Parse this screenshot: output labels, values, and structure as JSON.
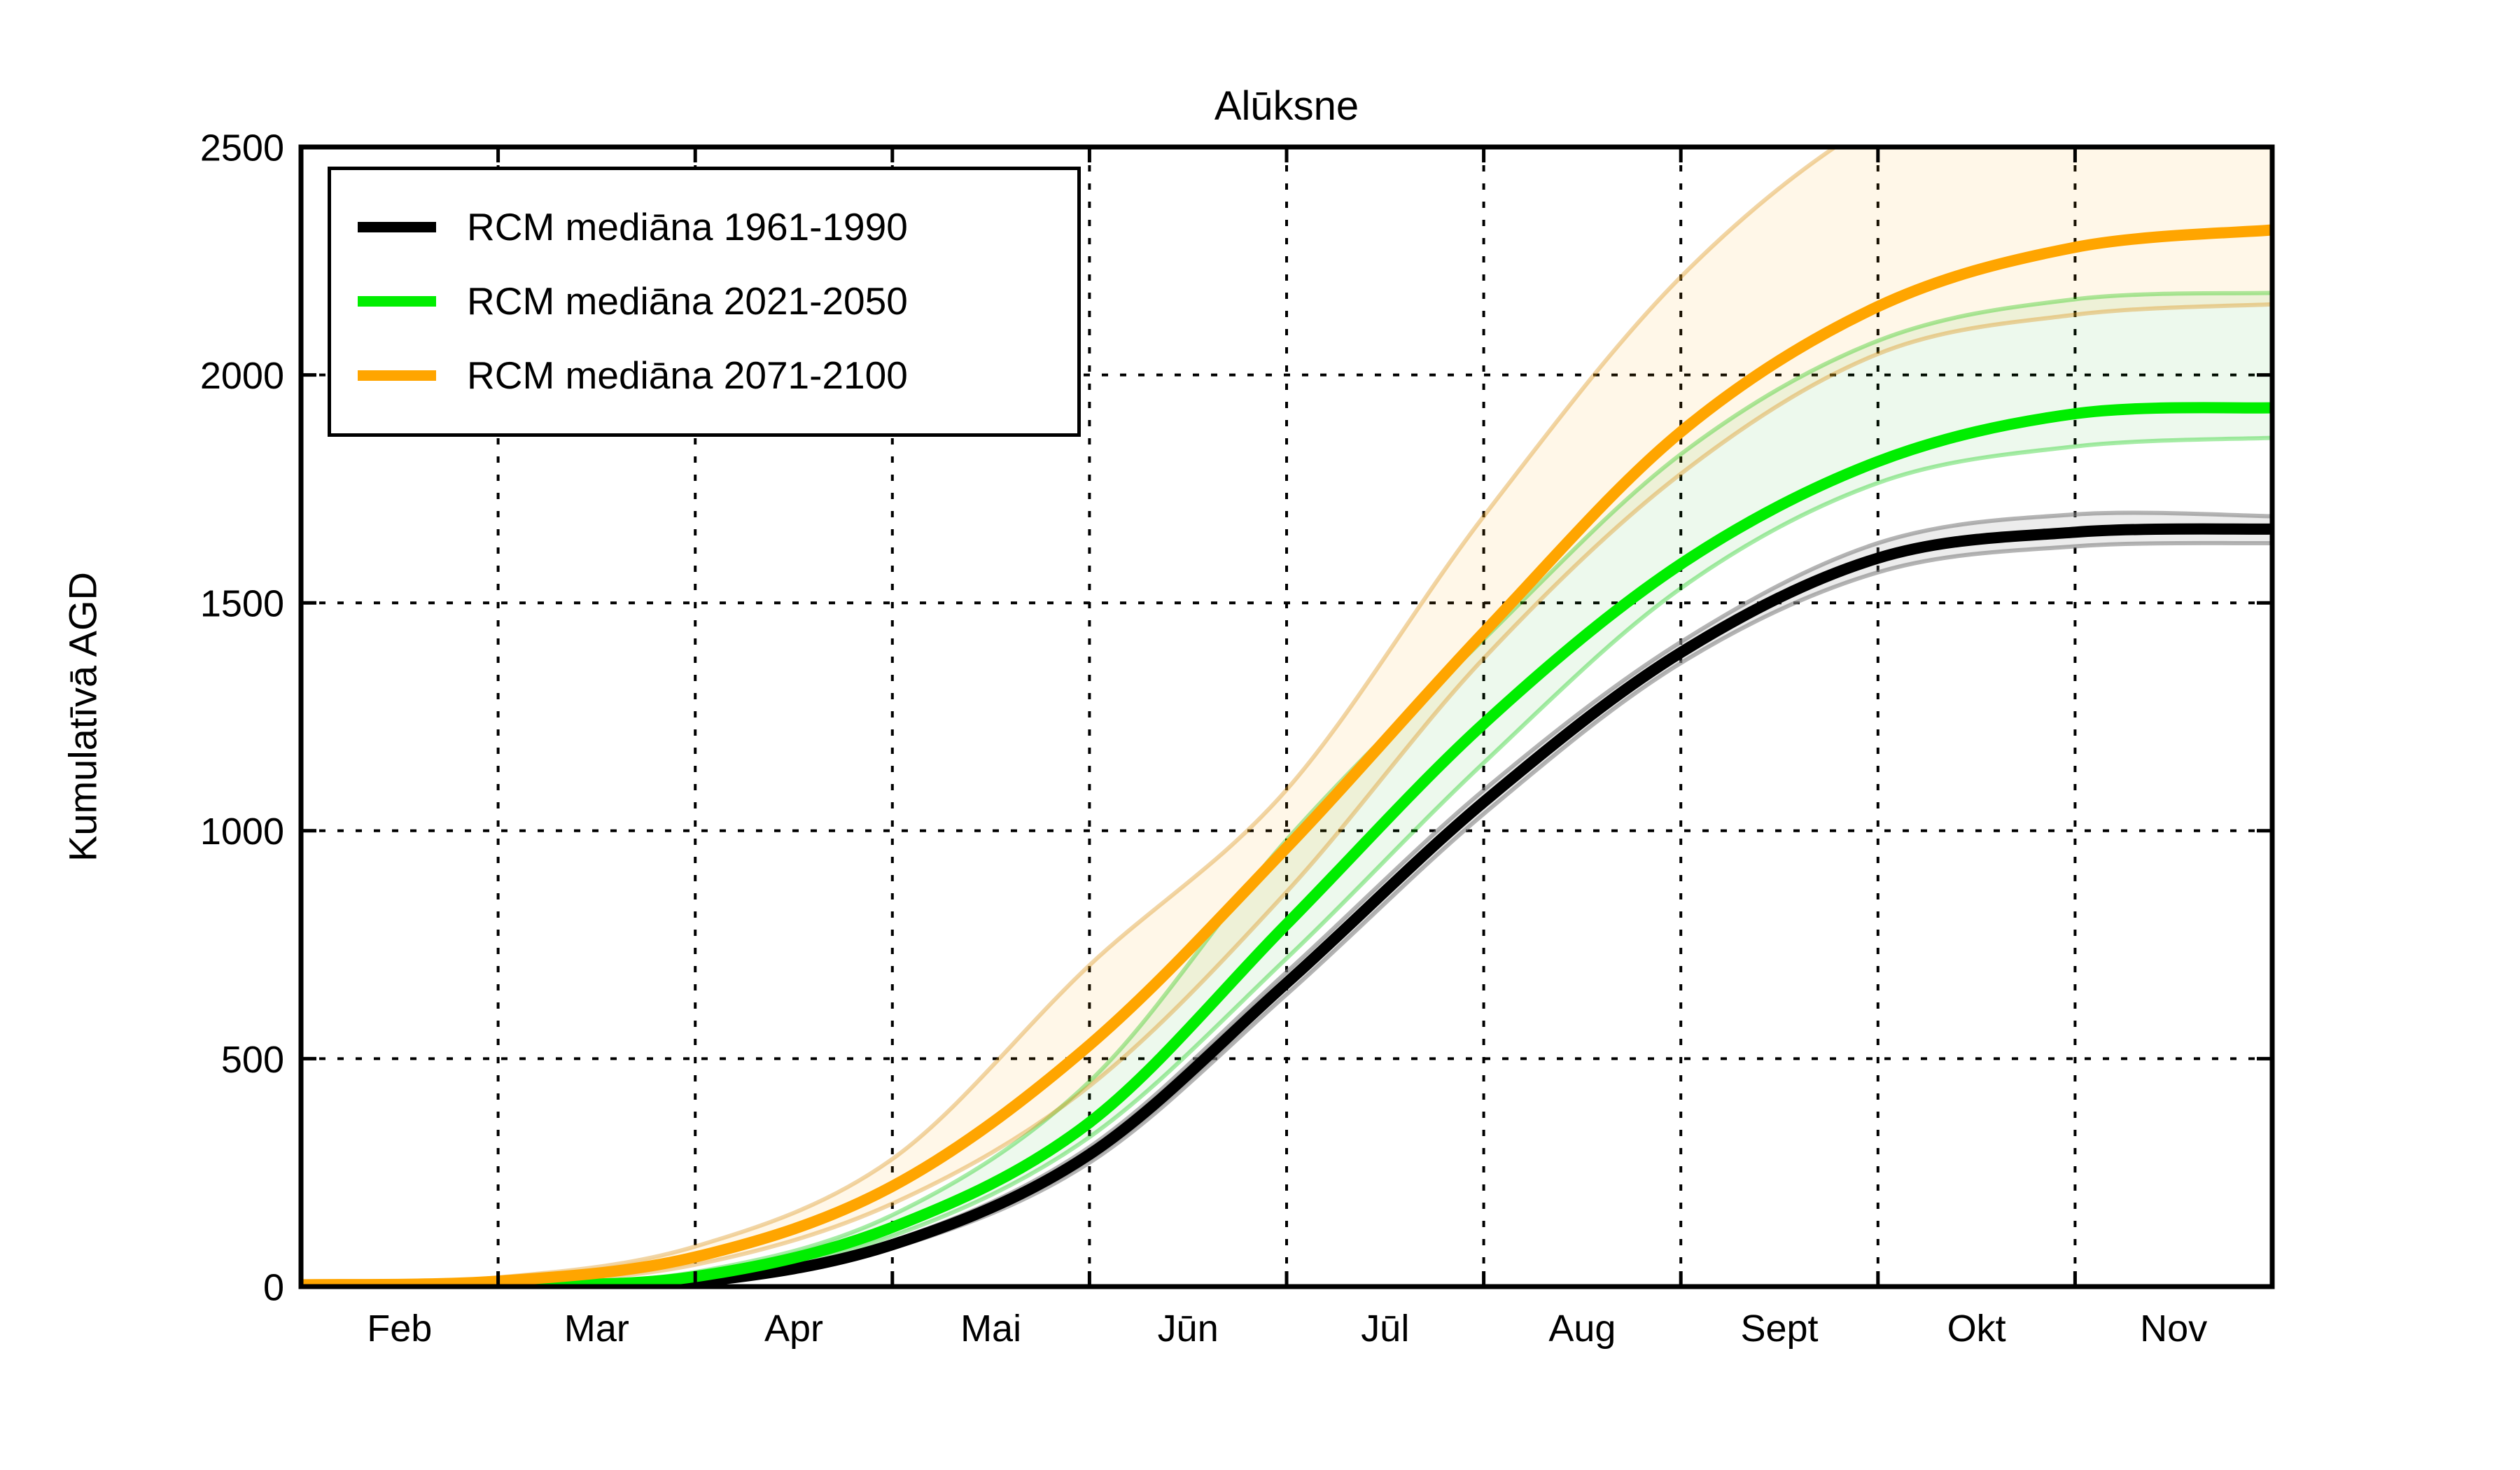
{
  "figure": {
    "title": "Alūksne",
    "y_axis_label": "Kumulatīvā AGD"
  },
  "chart_data": {
    "type": "line",
    "title": "Alūksne",
    "xlabel": "",
    "ylabel": "Kumulatīvā AGD",
    "ylim": [
      0,
      2500
    ],
    "yticks": [
      0,
      500,
      1000,
      1500,
      2000,
      2500
    ],
    "ytick_labels": [
      "0",
      "500",
      "1000",
      "1500",
      "2000",
      "2500"
    ],
    "x_unit": "months from Feb 1 (0 = Feb 1, 10 = Dec 1)",
    "xlim": [
      0,
      10
    ],
    "month_labels": [
      "Feb",
      "Mar",
      "Apr",
      "Mai",
      "Jūn",
      "Jūl",
      "Aug",
      "Sept",
      "Okt",
      "Nov"
    ],
    "grid": "dotted",
    "legend_position": "upper left",
    "x": [
      0,
      1,
      2,
      3,
      4,
      5,
      6,
      7,
      8,
      9,
      10
    ],
    "series": [
      {
        "name": "RCM mediāna 1961-1990",
        "color": "#000000",
        "values": [
          0,
          0,
          10,
          92,
          290,
          666,
          1063,
          1391,
          1598,
          1655,
          1662
        ],
        "band_upper": [
          0,
          1,
          14,
          100,
          306,
          690,
          1089,
          1414,
          1631,
          1694,
          1690
        ],
        "band_lower": [
          0,
          0,
          7,
          84,
          272,
          641,
          1037,
          1368,
          1567,
          1624,
          1631
        ],
        "band_fill": "rgba(150,150,150,0.18)",
        "band_edge": "rgba(130,130,130,0.6)"
      },
      {
        "name": "RCM mediāna 2021-2050",
        "color": "#00ee00",
        "values": [
          0,
          2,
          22,
          130,
          360,
          795,
          1235,
          1585,
          1810,
          1915,
          1928
        ],
        "band_upper": [
          0,
          4,
          32,
          157,
          450,
          980,
          1420,
          1826,
          2075,
          2166,
          2180
        ],
        "band_lower": [
          0,
          1,
          16,
          111,
          328,
          720,
          1149,
          1532,
          1763,
          1843,
          1862
        ],
        "band_fill": "rgba(0,170,0,0.07)",
        "band_edge": "rgba(0,200,0,0.35)"
      },
      {
        "name": "RCM mediāna 2071-2100",
        "color": "#ffa500",
        "values": [
          4,
          12,
          65,
          220,
          530,
          963,
          1435,
          1875,
          2150,
          2280,
          2318
        ],
        "band_upper": [
          6,
          20,
          88,
          280,
          705,
          1090,
          1690,
          2215,
          2560,
          2730,
          2790
        ],
        "band_lower": [
          2,
          6,
          48,
          182,
          440,
          866,
          1378,
          1783,
          2046,
          2132,
          2155
        ],
        "band_fill": "rgba(255,165,0,0.09)",
        "band_edge": "rgba(220,150,30,0.4)"
      }
    ]
  }
}
